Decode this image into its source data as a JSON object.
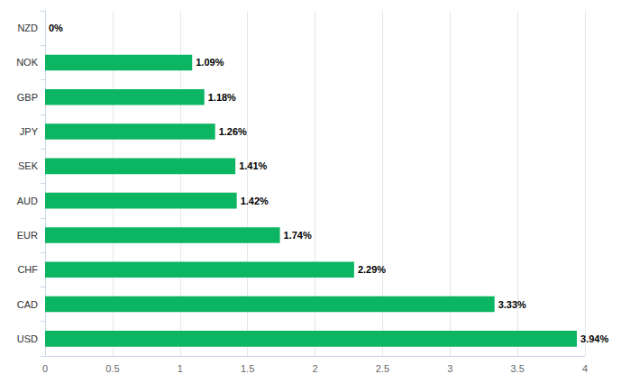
{
  "chart_data": {
    "type": "bar",
    "orientation": "horizontal",
    "categories": [
      "NZD",
      "NOK",
      "GBP",
      "JPY",
      "SEK",
      "AUD",
      "EUR",
      "CHF",
      "CAD",
      "USD"
    ],
    "values": [
      0,
      1.09,
      1.18,
      1.26,
      1.41,
      1.42,
      1.74,
      2.29,
      3.33,
      3.94
    ],
    "value_labels": [
      "0%",
      "1.09%",
      "1.18%",
      "1.26%",
      "1.41%",
      "1.42%",
      "1.74%",
      "2.29%",
      "3.33%",
      "3.94%"
    ],
    "color": "#0bb561",
    "xlim": [
      0,
      4
    ],
    "xticks": [
      0,
      0.5,
      1,
      1.5,
      2,
      2.5,
      3,
      3.5,
      4
    ],
    "grid": true,
    "data_labels": true
  }
}
